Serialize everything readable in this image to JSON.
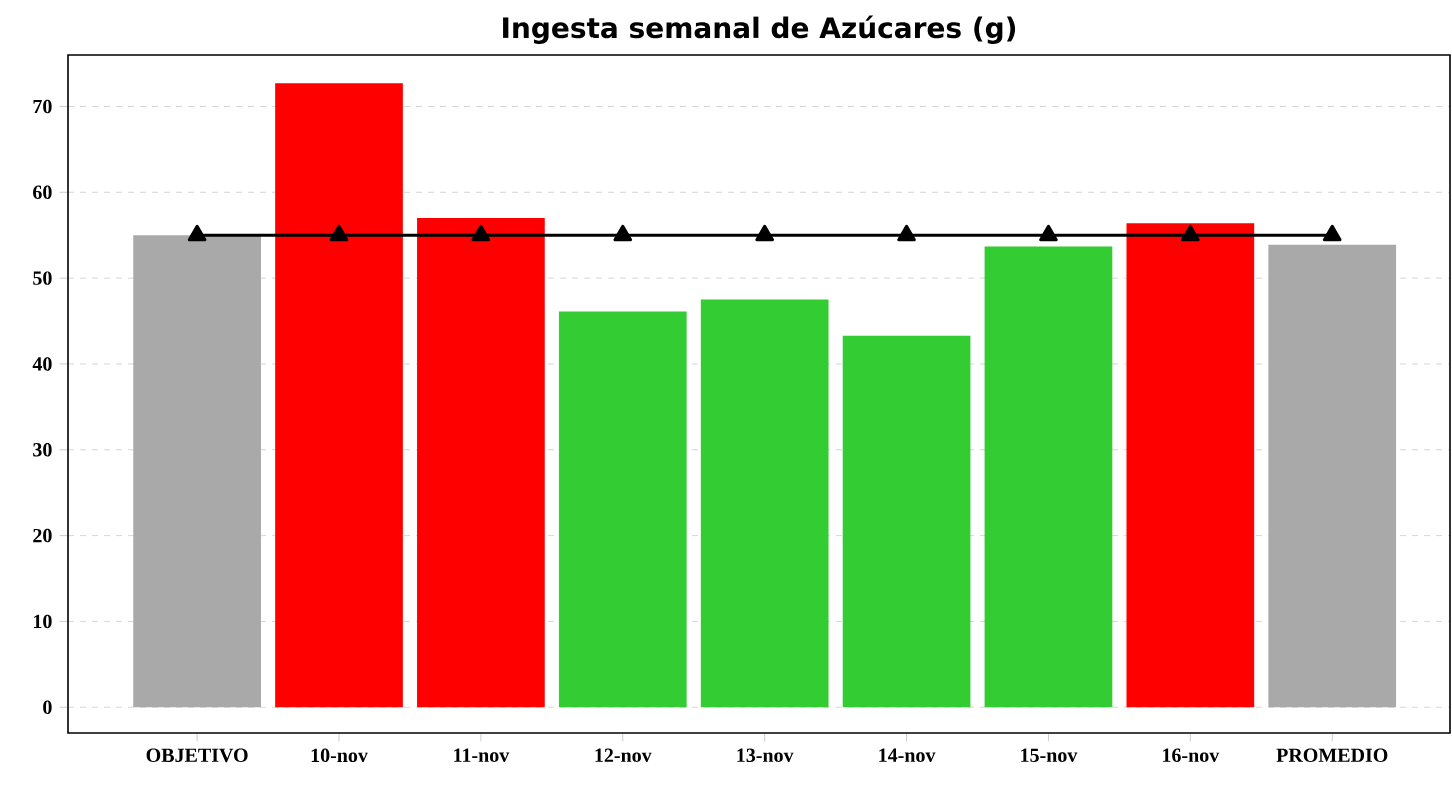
{
  "chart_data": {
    "type": "bar",
    "title": "Ingesta semanal de Azúcares (g)",
    "categories": [
      "OBJETIVO",
      "10-nov",
      "11-nov",
      "12-nov",
      "13-nov",
      "14-nov",
      "15-nov",
      "16-nov",
      "PROMEDIO"
    ],
    "series": [
      {
        "colors": [
          "#a9a9a9",
          "#ff0000",
          "#ff0000",
          "#33cc33",
          "#33cc33",
          "#33cc33",
          "#33cc33",
          "#ff0000",
          "#a9a9a9"
        ],
        "values": [
          55,
          72.7,
          57,
          46.1,
          47.5,
          43.3,
          53.7,
          56.4,
          53.9
        ]
      },
      {
        "type": "line",
        "color": "#000000",
        "marker": "triangle",
        "values": [
          55,
          55,
          55,
          55,
          55,
          55,
          55,
          55,
          55
        ]
      }
    ],
    "ylim": [
      -3,
      76
    ],
    "yticks": [
      0,
      10,
      20,
      30,
      40,
      50,
      60,
      70
    ],
    "grid": "y"
  }
}
